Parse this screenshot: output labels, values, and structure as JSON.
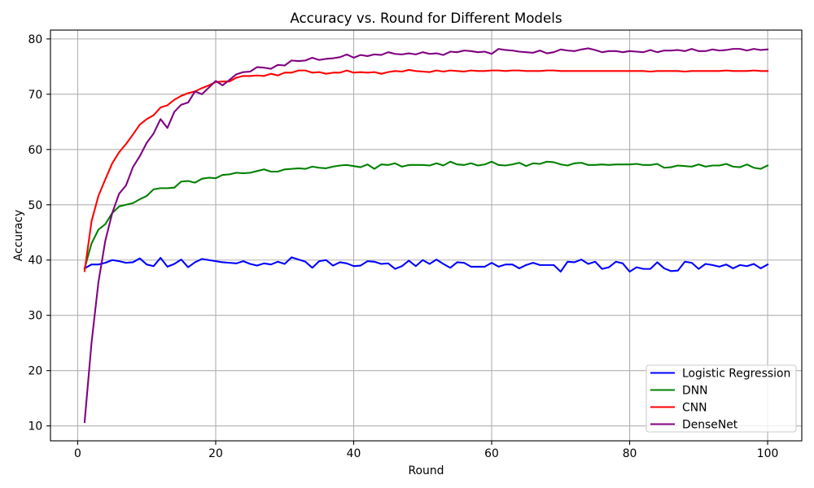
{
  "chart_data": {
    "type": "line",
    "title": "Accuracy vs. Round for Different Models",
    "xlabel": "Round",
    "ylabel": "Accuracy",
    "xlim": [
      -3.95,
      104.95
    ],
    "ylim": [
      7.3,
      81.6
    ],
    "xticks": [
      0,
      20,
      40,
      60,
      80,
      100
    ],
    "xtick_labels": [
      "0",
      "20",
      "40",
      "60",
      "80",
      "100"
    ],
    "yticks": [
      10,
      20,
      30,
      40,
      50,
      60,
      70,
      80
    ],
    "ytick_labels": [
      "10",
      "20",
      "30",
      "40",
      "50",
      "60",
      "70",
      "80"
    ],
    "grid": true,
    "legend": "lower right",
    "x": [
      1,
      2,
      3,
      4,
      5,
      6,
      7,
      8,
      9,
      10,
      11,
      12,
      13,
      14,
      15,
      16,
      17,
      18,
      19,
      20,
      21,
      22,
      23,
      24,
      25,
      26,
      27,
      28,
      29,
      30,
      31,
      32,
      33,
      34,
      35,
      36,
      37,
      38,
      39,
      40,
      41,
      42,
      43,
      44,
      45,
      46,
      47,
      48,
      49,
      50,
      51,
      52,
      53,
      54,
      55,
      56,
      57,
      58,
      59,
      60,
      61,
      62,
      63,
      64,
      65,
      66,
      67,
      68,
      69,
      70,
      71,
      72,
      73,
      74,
      75,
      76,
      77,
      78,
      79,
      80,
      81,
      82,
      83,
      84,
      85,
      86,
      87,
      88,
      89,
      90,
      91,
      92,
      93,
      94,
      95,
      96,
      97,
      98,
      99,
      100
    ],
    "series": [
      {
        "name": "Logistic Regression",
        "color": "#0000ff",
        "values": [
          38.5,
          39.2,
          39.2,
          39.5,
          40.0,
          39.8,
          39.5,
          39.6,
          40.3,
          39.2,
          38.9,
          40.4,
          38.8,
          39.3,
          40.1,
          38.7,
          39.6,
          40.2,
          40.0,
          39.8,
          39.6,
          39.5,
          39.4,
          39.8,
          39.3,
          39.0,
          39.4,
          39.2,
          39.7,
          39.3,
          40.5,
          40.1,
          39.7,
          38.6,
          39.8,
          40.0,
          39.0,
          39.6,
          39.4,
          38.9,
          39.0,
          39.8,
          39.7,
          39.3,
          39.4,
          38.4,
          38.9,
          39.9,
          38.9,
          40.0,
          39.3,
          40.1,
          39.3,
          38.6,
          39.6,
          39.5,
          38.8,
          38.8,
          38.8,
          39.5,
          38.8,
          39.2,
          39.2,
          38.5,
          39.1,
          39.5,
          39.1,
          39.1,
          39.1,
          37.9,
          39.7,
          39.6,
          40.1,
          39.3,
          39.7,
          38.4,
          38.7,
          39.7,
          39.4,
          37.9,
          38.7,
          38.4,
          38.4,
          39.6,
          38.5,
          38.0,
          38.1,
          39.7,
          39.5,
          38.4,
          39.3,
          39.1,
          38.8,
          39.2,
          38.5,
          39.1,
          38.9,
          39.3,
          38.5,
          39.2
        ]
      },
      {
        "name": "DNN",
        "color": "#008000",
        "values": [
          38.5,
          43.0,
          45.5,
          46.5,
          48.5,
          49.7,
          50.0,
          50.3,
          51.0,
          51.6,
          52.8,
          53.0,
          53.0,
          53.1,
          54.2,
          54.3,
          54.0,
          54.7,
          54.9,
          54.8,
          55.4,
          55.5,
          55.8,
          55.7,
          55.8,
          56.1,
          56.4,
          56.0,
          56.0,
          56.4,
          56.5,
          56.6,
          56.5,
          56.9,
          56.7,
          56.6,
          56.9,
          57.1,
          57.2,
          57.0,
          56.8,
          57.3,
          56.5,
          57.3,
          57.2,
          57.5,
          56.9,
          57.2,
          57.2,
          57.2,
          57.1,
          57.5,
          57.1,
          57.8,
          57.3,
          57.2,
          57.5,
          57.1,
          57.3,
          57.8,
          57.2,
          57.1,
          57.3,
          57.6,
          57.0,
          57.5,
          57.4,
          57.8,
          57.7,
          57.3,
          57.1,
          57.5,
          57.6,
          57.2,
          57.2,
          57.3,
          57.2,
          57.3,
          57.3,
          57.3,
          57.4,
          57.2,
          57.2,
          57.4,
          56.7,
          56.8,
          57.1,
          57.0,
          56.9,
          57.3,
          56.9,
          57.1,
          57.1,
          57.4,
          56.9,
          56.8,
          57.3,
          56.7,
          56.5,
          57.1
        ]
      },
      {
        "name": "CNN",
        "color": "#ff0000",
        "values": [
          38.0,
          47.0,
          51.6,
          54.6,
          57.5,
          59.5,
          61.0,
          62.7,
          64.5,
          65.5,
          66.2,
          67.6,
          68.0,
          69.0,
          69.7,
          70.2,
          70.5,
          71.1,
          71.6,
          72.2,
          72.3,
          72.3,
          73.0,
          73.3,
          73.3,
          73.4,
          73.3,
          73.7,
          73.4,
          73.9,
          73.9,
          74.3,
          74.3,
          73.9,
          74.0,
          73.7,
          73.9,
          73.9,
          74.3,
          73.9,
          74.0,
          73.9,
          74.0,
          73.7,
          74.0,
          74.2,
          74.1,
          74.4,
          74.2,
          74.1,
          74.0,
          74.3,
          74.1,
          74.3,
          74.2,
          74.1,
          74.3,
          74.2,
          74.2,
          74.3,
          74.3,
          74.2,
          74.3,
          74.3,
          74.2,
          74.2,
          74.2,
          74.3,
          74.3,
          74.2,
          74.2,
          74.2,
          74.2,
          74.2,
          74.2,
          74.2,
          74.2,
          74.2,
          74.2,
          74.2,
          74.2,
          74.2,
          74.1,
          74.2,
          74.2,
          74.2,
          74.2,
          74.1,
          74.2,
          74.2,
          74.2,
          74.2,
          74.2,
          74.3,
          74.2,
          74.2,
          74.2,
          74.3,
          74.2,
          74.2
        ]
      },
      {
        "name": "DenseNet",
        "color": "#800080",
        "values": [
          10.7,
          25.0,
          36.0,
          43.5,
          48.5,
          52.0,
          53.5,
          56.8,
          58.8,
          61.2,
          62.9,
          65.5,
          63.9,
          66.8,
          68.1,
          68.5,
          70.5,
          70.0,
          71.2,
          72.4,
          71.6,
          72.6,
          73.6,
          74.0,
          74.1,
          74.9,
          74.8,
          74.6,
          75.3,
          75.2,
          76.1,
          76.0,
          76.1,
          76.6,
          76.2,
          76.4,
          76.5,
          76.7,
          77.2,
          76.6,
          77.1,
          76.9,
          77.2,
          77.1,
          77.6,
          77.3,
          77.2,
          77.4,
          77.2,
          77.6,
          77.3,
          77.4,
          77.1,
          77.7,
          77.6,
          77.9,
          77.8,
          77.6,
          77.7,
          77.3,
          78.2,
          78.0,
          77.9,
          77.7,
          77.6,
          77.5,
          77.9,
          77.4,
          77.6,
          78.1,
          77.9,
          77.8,
          78.1,
          78.3,
          78.0,
          77.6,
          77.8,
          77.8,
          77.6,
          77.8,
          77.7,
          77.6,
          78.0,
          77.6,
          77.9,
          77.9,
          78.0,
          77.8,
          78.2,
          77.8,
          77.8,
          78.1,
          77.9,
          78.0,
          78.2,
          78.2,
          77.9,
          78.2,
          78.0,
          78.1
        ]
      }
    ]
  }
}
